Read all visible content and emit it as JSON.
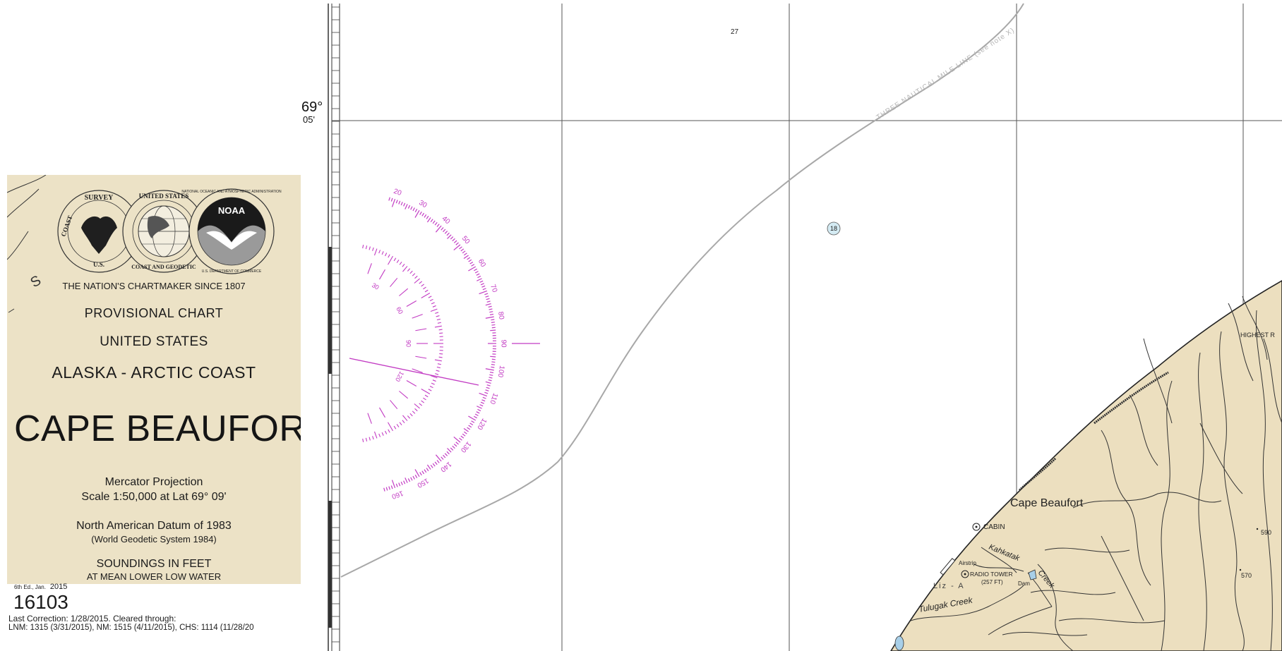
{
  "chart": {
    "latitude_label": {
      "degrees": "69°",
      "minutes": "05'"
    },
    "sounding_top": "27",
    "sounding_circle": "18",
    "three_mile_line": "THREE NAUTICAL MILE LINE (see note X)"
  },
  "title_block": {
    "motto": "THE NATION'S CHARTMAKER SINCE 1807",
    "chart_type": "PROVISIONAL CHART",
    "country": "UNITED STATES",
    "region": "ALASKA - ARCTIC COAST",
    "chart_title": "CAPE BEAUFORT",
    "projection": "Mercator Projection",
    "scale": "Scale 1:50,000 at Lat 69° 09'",
    "datum": "North American Datum of 1983",
    "datum_note": "(World Geodetic System 1984)",
    "soundings": "SOUNDINGS IN FEET",
    "soundings_ref": "AT MEAN LOWER LOW WATER",
    "seal_survey_text": "SURVEY",
    "seal_coast_text": "COAST",
    "seal_us_text": "U.S.",
    "seal_usc_text": "UNITED STATES",
    "seal_geodetic_text": "COAST AND GEODETIC",
    "noaa_logo": "NOAA",
    "seal_noaa_ring": "NATIONAL OCEANIC AND ATMOSPHERIC ADMINISTRATION",
    "seal_commerce_ring": "U.S. DEPARTMENT OF COMMERCE",
    "letter_s": "S"
  },
  "edition": {
    "edition_text": "6th Ed., Jan.",
    "year": "2015",
    "chart_number": "16103",
    "last_correction": "Last Correction: 1/28/2015.  Cleared through:",
    "lnm": "LNM: 1315 (3/31/2015), NM: 1515 (4/11/2015), CHS: 1114 (11/28/20"
  },
  "compass": {
    "outer_labels": [
      "20",
      "30",
      "40",
      "50",
      "60",
      "70",
      "80",
      "90",
      "100",
      "110",
      "120",
      "130",
      "140",
      "150",
      "160"
    ],
    "inner_labels": [
      "30",
      "60",
      "90",
      "120"
    ]
  },
  "land_labels": {
    "cape": "Cape Beaufort",
    "cabin": "CABIN",
    "creek_kahkatak": "Kahkatak",
    "creek_word": "Creek",
    "airstrip": "Airstrip",
    "radio_tower": "RADIO TOWER",
    "radio_tower_height": "(257 FT)",
    "dam": "Dam",
    "liz": "Liz - A",
    "tulugak": "Tulugak Creek",
    "highest": "HIGHEST R",
    "elev_590": "590",
    "elev_570": "570"
  },
  "colors": {
    "land": "#ecdfbf",
    "compass": "#c23bc3",
    "grid": "#444444",
    "tsunami_line": "#a8a8a8"
  }
}
